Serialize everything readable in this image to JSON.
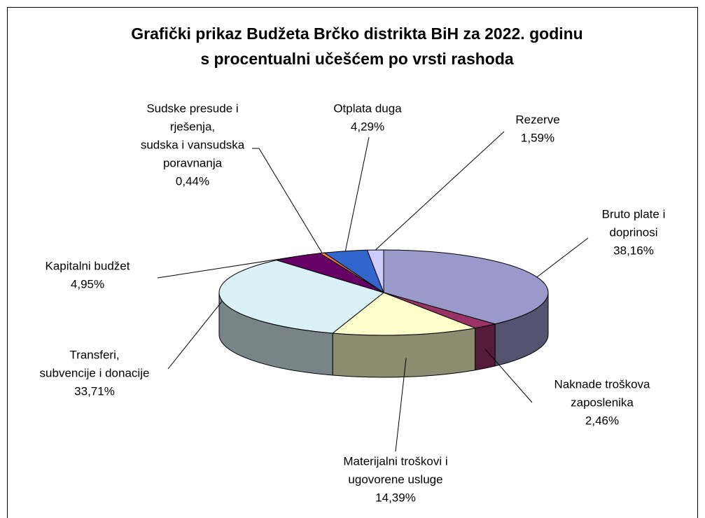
{
  "chart_data": {
    "type": "pie",
    "title": "Grafički prikaz Budžeta Brčko distrikta BiH za 2022. godinu",
    "subtitle": "s procentualni učešćem po vrsti rashoda",
    "categories": [
      [
        "Bruto plate i",
        "doprinosi"
      ],
      [
        "Naknade troškova",
        "zaposlenika"
      ],
      [
        "Materijalni troškovi i",
        "ugovorene usluge"
      ],
      [
        "Transferi,",
        "subvencije i donacije"
      ],
      [
        "Kapitalni budžet"
      ],
      [
        "Sudske presude i",
        "rješenja,",
        "sudska i vansudska",
        "poravnanja"
      ],
      [
        "Otplata duga"
      ],
      [
        "Rezerve"
      ]
    ],
    "values": [
      38.16,
      2.46,
      14.39,
      33.71,
      4.95,
      0.44,
      4.29,
      1.59
    ],
    "value_labels": [
      "38,16%",
      "2,46%",
      "14,39%",
      "33,71%",
      "4,95%",
      "0,44%",
      "4,29%",
      "1,59%"
    ],
    "colors": [
      "#9999cc",
      "#993366",
      "#ffffcc",
      "#d9f1f7",
      "#660066",
      "#ff8040",
      "#3366cc",
      "#ccccff"
    ]
  }
}
